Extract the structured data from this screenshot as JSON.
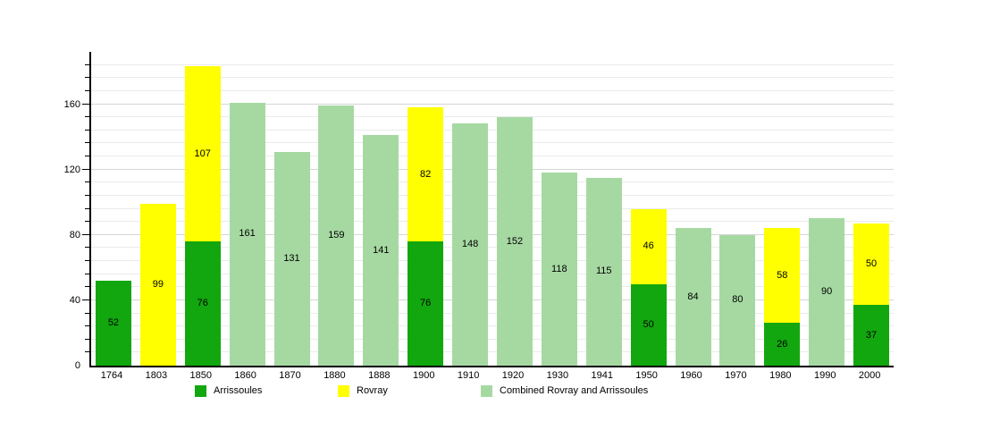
{
  "chart_data": {
    "type": "bar",
    "stacked": true,
    "title": "",
    "categories": [
      "1764",
      "1803",
      "1850",
      "1860",
      "1870",
      "1880",
      "1888",
      "1900",
      "1910",
      "1920",
      "1930",
      "1941",
      "1950",
      "1960",
      "1970",
      "1980",
      "1990",
      "2000"
    ],
    "series": [
      {
        "name": "Arrissoules",
        "color": "#12a70e",
        "values": [
          52,
          null,
          76,
          null,
          null,
          null,
          null,
          76,
          null,
          null,
          null,
          null,
          50,
          null,
          null,
          26,
          null,
          37
        ]
      },
      {
        "name": "Rovray",
        "color": "#ffff00",
        "values": [
          null,
          99,
          107,
          null,
          null,
          null,
          null,
          82,
          null,
          null,
          null,
          null,
          46,
          null,
          null,
          58,
          null,
          50
        ]
      },
      {
        "name": "Combined Rovray and Arrissoules",
        "color": "#a6d9a2",
        "values": [
          null,
          null,
          null,
          161,
          131,
          159,
          141,
          null,
          148,
          152,
          118,
          115,
          null,
          84,
          80,
          null,
          90,
          null
        ]
      }
    ],
    "ylim": [
      0,
      192
    ],
    "yticks": [
      0,
      40,
      80,
      120,
      160
    ],
    "minor_grid_step": 8,
    "grid": true,
    "bar_labels": true,
    "legend_position": "bottom"
  },
  "colors": {
    "background": "#ffffff",
    "axis": "#000000",
    "grid_minor": "#ebebeb",
    "grid_major": "#d6d6d6",
    "text": "#000000"
  }
}
